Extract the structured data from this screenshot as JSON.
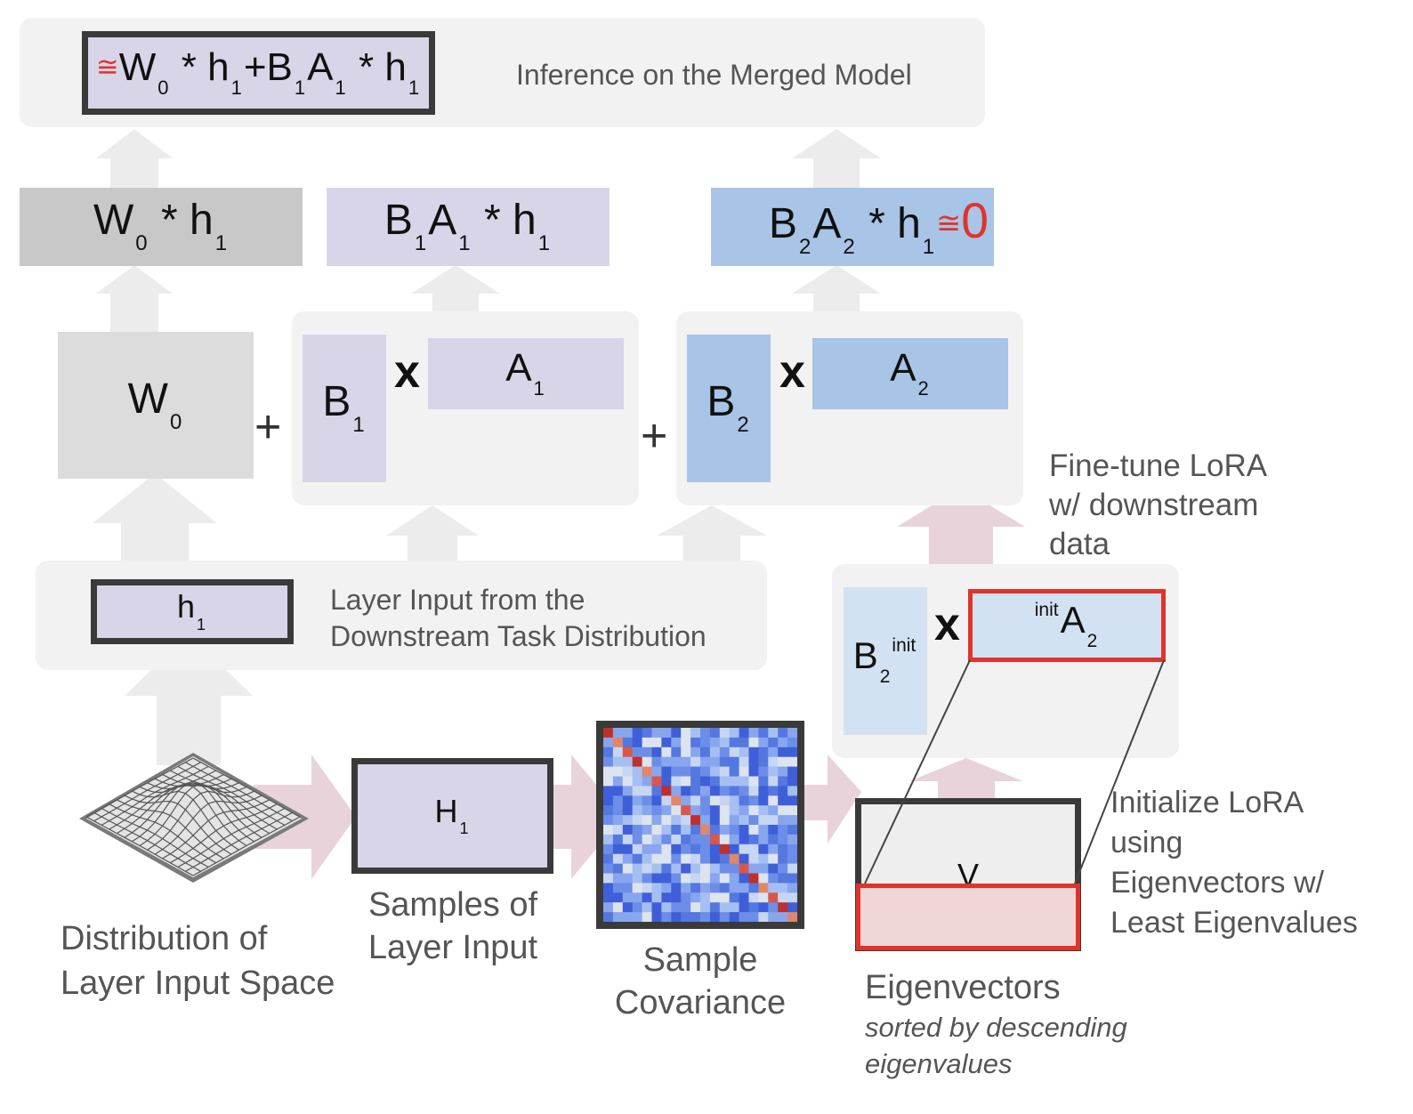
{
  "top": {
    "formula": {
      "approx": "≅",
      "w": "W",
      "w_sub": "0",
      "star1": "*",
      "h": "h",
      "h_sub": "1",
      "plus": "+",
      "b": "B",
      "b_sub": "1",
      "a": "A",
      "a_sub": "1",
      "star2": "*",
      "h2": "h",
      "h2_sub": "1"
    },
    "caption": "Inference on the Merged Model"
  },
  "outputs": {
    "w0h": {
      "w": "W",
      "w_sub": "0",
      "star": "*",
      "h": "h",
      "h_sub": "1"
    },
    "b1a1h": {
      "b": "B",
      "b_sub": "1",
      "a": "A",
      "a_sub": "1",
      "star": "*",
      "h": "h",
      "h_sub": "1"
    },
    "b2a2h": {
      "b": "B",
      "b_sub": "2",
      "a": "A",
      "a_sub": "2",
      "star": "*",
      "h": "h",
      "h_sub": "1",
      "approx": "≅",
      "zero": "0"
    }
  },
  "weights": {
    "w0": {
      "label": "W",
      "sub": "0"
    },
    "plus1": "+",
    "b1": {
      "label": "B",
      "sub": "1"
    },
    "x1": "x",
    "a1": {
      "label": "A",
      "sub": "1"
    },
    "plus2": "+",
    "b2": {
      "label": "B",
      "sub": "2"
    },
    "x2": "x",
    "a2": {
      "label": "A",
      "sub": "2"
    }
  },
  "finetune_caption": [
    "Fine-tune LoRA",
    "w/ downstream",
    "data"
  ],
  "layer_input": {
    "h": "h",
    "h_sub": "1",
    "caption": [
      "Layer Input from the",
      "Downstream Task Distribution"
    ]
  },
  "init": {
    "b": "B",
    "b_sub": "2",
    "b_sup": "init",
    "x": "x",
    "a": "A",
    "a_sub": "2",
    "a_sup": "init"
  },
  "bottom": {
    "distribution_caption": [
      "Distribution of",
      "Layer Input Space"
    ],
    "samples": {
      "label": "H",
      "sub": "1",
      "caption": [
        "Samples of",
        "Layer Input"
      ]
    },
    "covariance_caption": [
      "Sample",
      "Covariance"
    ],
    "eigen": {
      "label": "V",
      "caption": "Eigenvectors",
      "note": [
        "sorted by descending",
        "eigenvalues"
      ]
    },
    "initialize_caption": [
      "Initialize LoRA",
      "using",
      "Eigenvectors w/",
      "Least Eigenvalues"
    ]
  },
  "colors": {
    "gray_arrow": "#ececec",
    "pink_arrow": "#e9d3da",
    "lavender": "#d9d5e8",
    "blue": "#a8c4e6",
    "light_blue": "#d3e2f2",
    "red": "#e0332c",
    "heatmap_low": "#3f5fd8",
    "heatmap_high": "#c0302a"
  }
}
